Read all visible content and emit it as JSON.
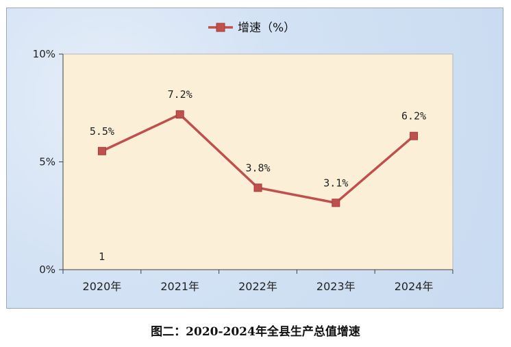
{
  "chart_data": {
    "type": "line",
    "categories": [
      "2020年",
      "2021年",
      "2022年",
      "2023年",
      "2024年"
    ],
    "series": [
      {
        "name": "增速（%）",
        "values": [
          5.5,
          7.2,
          3.8,
          3.1,
          6.2
        ],
        "labels": [
          "5.5%",
          "7.2%",
          "3.8%",
          "3.1%",
          "6.2%"
        ],
        "color": "#c0504d"
      }
    ],
    "y_ticks": [
      "0%",
      "5%",
      "10%"
    ],
    "ylim": [
      0,
      10
    ],
    "annotation": "1",
    "legend_position": "top",
    "plot_background": "#fbf0d7",
    "outer_background": "#d3e2f4"
  },
  "caption": "图二：2020-2024年全县生产总值增速"
}
